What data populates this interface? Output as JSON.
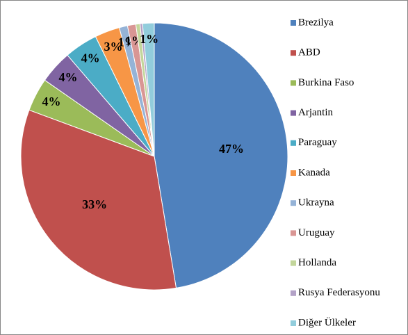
{
  "chart_data": {
    "type": "pie",
    "categories": [
      "Brezilya",
      "ABD",
      "Burkina Faso",
      "Arjantin",
      "Paraguay",
      "Kanada",
      "Ukrayna",
      "Uruguay",
      "Hollanda",
      "Rusya Federasyonu",
      "Diğer Ülkeler"
    ],
    "values": [
      47,
      33,
      4,
      4,
      4,
      3,
      1,
      1,
      0.5,
      0.3,
      1.4
    ],
    "value_labels": [
      "47%",
      "33%",
      "4%",
      "4%",
      "4%",
      "3%",
      "1%",
      "1%",
      null,
      null,
      "1%"
    ],
    "colors": [
      "#4f81bd",
      "#c0504d",
      "#9bbb59",
      "#8064a2",
      "#4bacc6",
      "#f79646",
      "#95b3d7",
      "#d99694",
      "#c3d69b",
      "#b3a2c7",
      "#92cddc"
    ],
    "legend": "right"
  }
}
